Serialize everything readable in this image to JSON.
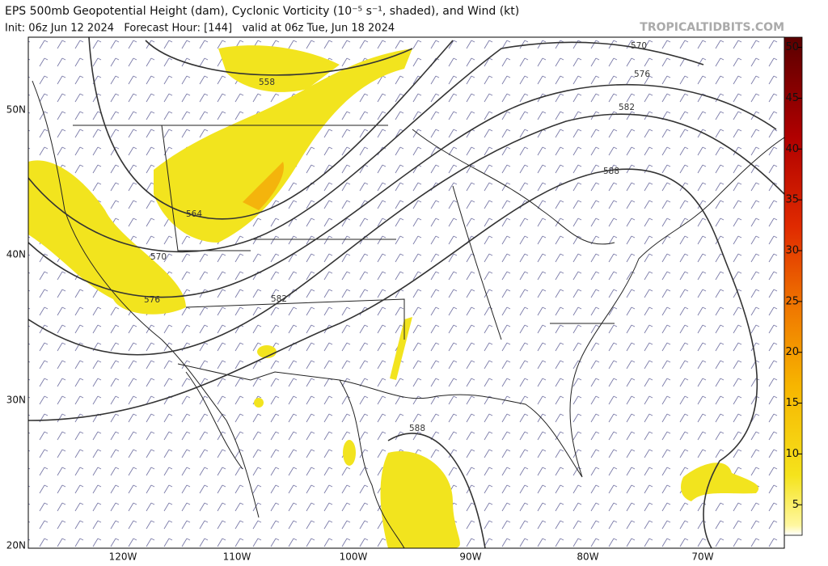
{
  "header": {
    "title": "EPS 500mb Geopotential Height (dam), Cyclonic Vorticity (10⁻⁵ s⁻¹, shaded), and Wind (kt)",
    "subtitle": "Init: 06z Jun 12 2024   Forecast Hour: [144]   valid at 06z Tue, Jun 18 2024",
    "watermark": "TROPICALTIDBITS.COM"
  },
  "map": {
    "latitude_labels": [
      "50N",
      "40N",
      "30N",
      "20N"
    ],
    "longitude_labels": [
      "120W",
      "110W",
      "100W",
      "90W",
      "80W",
      "70W"
    ],
    "contour_labels": [
      "558",
      "564",
      "570",
      "576",
      "582",
      "570",
      "576",
      "582",
      "588",
      "588"
    ]
  },
  "colorbar": {
    "lim": [
      2,
      51
    ],
    "ticks": [
      5,
      10,
      15,
      20,
      25,
      30,
      35,
      40,
      45,
      50
    ]
  }
}
